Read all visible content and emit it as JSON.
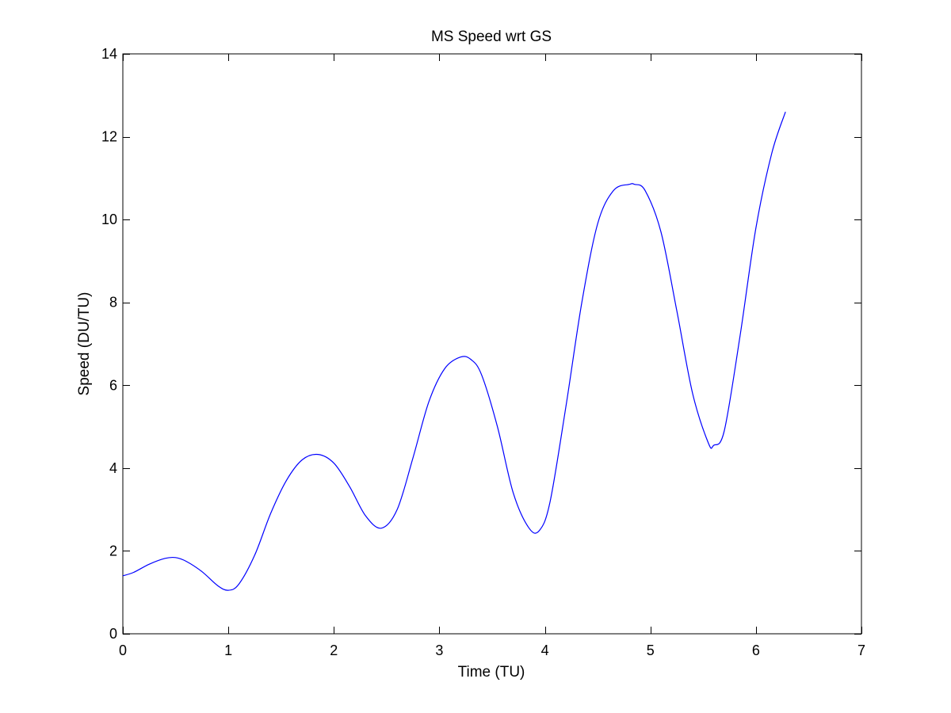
{
  "chart_data": {
    "type": "line",
    "title": "MS Speed wrt GS",
    "xlabel": "Time (TU)",
    "ylabel": "Speed (DU/TU)",
    "xlim": [
      0,
      7
    ],
    "ylim": [
      0,
      14
    ],
    "xticks": [
      0,
      1,
      2,
      3,
      4,
      5,
      6,
      7
    ],
    "yticks": [
      0,
      2,
      4,
      6,
      8,
      10,
      12,
      14
    ],
    "xtick_labels": [
      "0",
      "1",
      "2",
      "3",
      "4",
      "5",
      "6",
      "7"
    ],
    "ytick_labels": [
      "0",
      "2",
      "4",
      "6",
      "8",
      "10",
      "12",
      "14"
    ],
    "grid": false,
    "legend": "none",
    "line_color": "#0000ff",
    "series": [
      {
        "x": [
          0,
          0.1,
          0.25,
          0.4,
          0.5,
          0.6,
          0.75,
          0.9,
          1.0,
          1.1,
          1.25,
          1.4,
          1.55,
          1.7,
          1.85,
          2.0,
          2.15,
          2.3,
          2.45,
          2.6,
          2.75,
          2.9,
          3.05,
          3.2,
          3.3,
          3.4,
          3.55,
          3.7,
          3.85,
          3.95,
          4.05,
          4.2,
          4.35,
          4.5,
          4.65,
          4.8,
          4.85,
          4.95,
          5.1,
          5.25,
          5.4,
          5.55,
          5.6,
          5.7,
          5.85,
          6.0,
          6.15,
          6.28
        ],
        "y": [
          1.4,
          1.48,
          1.68,
          1.82,
          1.84,
          1.75,
          1.5,
          1.16,
          1.05,
          1.2,
          1.9,
          2.9,
          3.7,
          4.2,
          4.33,
          4.12,
          3.55,
          2.85,
          2.55,
          3.0,
          4.25,
          5.6,
          6.4,
          6.68,
          6.62,
          6.25,
          5.0,
          3.4,
          2.55,
          2.5,
          3.2,
          5.5,
          8.0,
          9.9,
          10.7,
          10.85,
          10.85,
          10.7,
          9.7,
          7.8,
          5.8,
          4.6,
          4.55,
          4.9,
          7.2,
          9.8,
          11.6,
          12.6
        ]
      }
    ]
  }
}
